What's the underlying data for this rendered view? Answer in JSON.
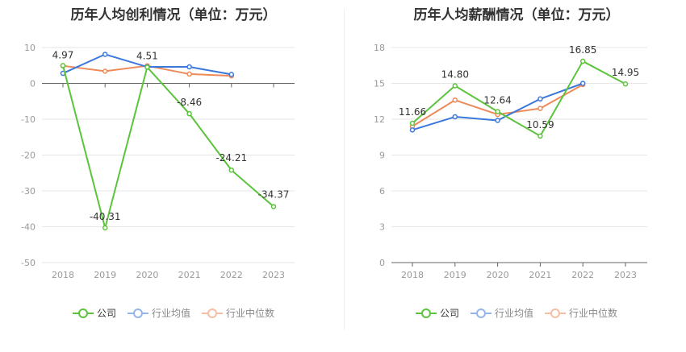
{
  "chart_data": [
    {
      "type": "line",
      "title": "历年人均创利情况（单位：万元）",
      "categories": [
        "2018",
        "2019",
        "2020",
        "2021",
        "2022",
        "2023"
      ],
      "ylim": [
        -50,
        10
      ],
      "yticks": [
        10,
        0,
        -10,
        -20,
        -30,
        -40,
        -50
      ],
      "grid": true,
      "legend_position": "bottom",
      "series": [
        {
          "name": "公司",
          "color": "#5cc33c",
          "values": [
            4.97,
            -40.31,
            4.51,
            -8.46,
            -24.21,
            -34.37
          ],
          "labels": [
            "4.97",
            "-40.31",
            "4.51",
            "-8.46",
            "-24.21",
            "-34.37"
          ]
        },
        {
          "name": "行业均值",
          "color": "#3b78dc",
          "values": [
            2.8,
            8.1,
            4.6,
            4.6,
            2.5,
            null
          ]
        },
        {
          "name": "行业中位数",
          "color": "#ee8959",
          "values": [
            4.9,
            3.4,
            4.9,
            2.6,
            2.1,
            null
          ]
        }
      ]
    },
    {
      "type": "line",
      "title": "历年人均薪酬情况（单位：万元）",
      "categories": [
        "2018",
        "2019",
        "2020",
        "2021",
        "2022",
        "2023"
      ],
      "ylim": [
        0,
        18
      ],
      "yticks": [
        18,
        15,
        12,
        9,
        6,
        3,
        0
      ],
      "grid": true,
      "legend_position": "bottom",
      "series": [
        {
          "name": "公司",
          "color": "#5cc33c",
          "values": [
            11.66,
            14.8,
            12.64,
            10.59,
            16.85,
            14.95
          ],
          "labels": [
            "11.66",
            "14.80",
            "12.64",
            "10.59",
            "16.85",
            "14.95"
          ]
        },
        {
          "name": "行业均值",
          "color": "#3b78dc",
          "values": [
            11.1,
            12.2,
            11.9,
            13.7,
            15.0,
            null
          ]
        },
        {
          "name": "行业中位数",
          "color": "#ee8959",
          "values": [
            11.4,
            13.6,
            12.4,
            12.9,
            14.9,
            null
          ]
        }
      ]
    }
  ]
}
